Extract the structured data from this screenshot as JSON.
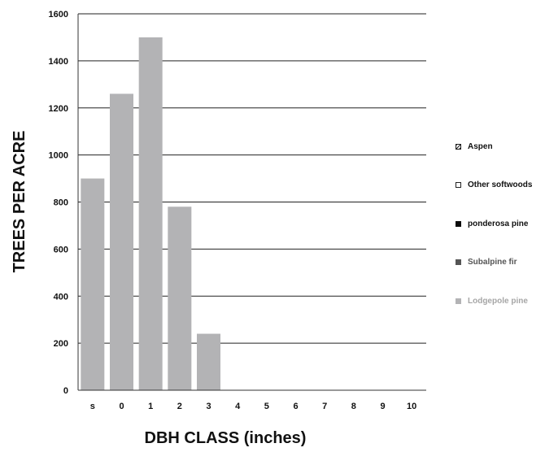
{
  "chart_data": {
    "type": "bar",
    "xlabel": "DBH CLASS (inches)",
    "ylabel": "TREES PER ACRE",
    "categories": [
      "s",
      "0",
      "1",
      "2",
      "3",
      "4",
      "5",
      "6",
      "7",
      "8",
      "9",
      "10"
    ],
    "ylim": [
      0,
      1600
    ],
    "yticks": [
      "0",
      "200",
      "400",
      "600",
      "800",
      "1000",
      "1200",
      "1400",
      "1600"
    ],
    "grid": "horizontal",
    "legend_position": "right",
    "series": [
      {
        "name": "Lodgepole pine",
        "color": "#b3b3b5",
        "values": [
          900,
          1260,
          1500,
          780,
          240,
          0,
          0,
          0,
          0,
          0,
          0,
          0
        ]
      },
      {
        "name": "Subalpine fir",
        "color": "#555555",
        "values": [
          0,
          0,
          0,
          0,
          0,
          0,
          0,
          0,
          0,
          0,
          0,
          0
        ]
      },
      {
        "name": "ponderosa pine",
        "color": "#0c0c0c",
        "values": [
          0,
          0,
          0,
          0,
          0,
          0,
          0,
          0,
          0,
          0,
          0,
          0
        ]
      },
      {
        "name": "Other softwoods",
        "color": "#ffffff",
        "values": [
          0,
          0,
          0,
          0,
          0,
          0,
          0,
          0,
          0,
          0,
          0,
          0
        ]
      },
      {
        "name": "Aspen",
        "color": "#888888",
        "values": [
          0,
          0,
          0,
          0,
          0,
          0,
          0,
          0,
          0,
          0,
          0,
          0
        ]
      }
    ],
    "legend": [
      {
        "label": "Aspen",
        "swatch": "hatched",
        "color": "#222222",
        "text_color": "#111111"
      },
      {
        "label": "Other softwoods",
        "swatch": "hollow",
        "color": "#222222",
        "text_color": "#111111"
      },
      {
        "label": "ponderosa pine",
        "swatch": "solid",
        "color": "#0c0c0c",
        "text_color": "#111111"
      },
      {
        "label": "Subalpine fir",
        "swatch": "solid",
        "color": "#555555",
        "text_color": "#555555"
      },
      {
        "label": "Lodgepole pine",
        "swatch": "solid",
        "color": "#b3b3b5",
        "text_color": "#a6a6a6"
      }
    ]
  }
}
